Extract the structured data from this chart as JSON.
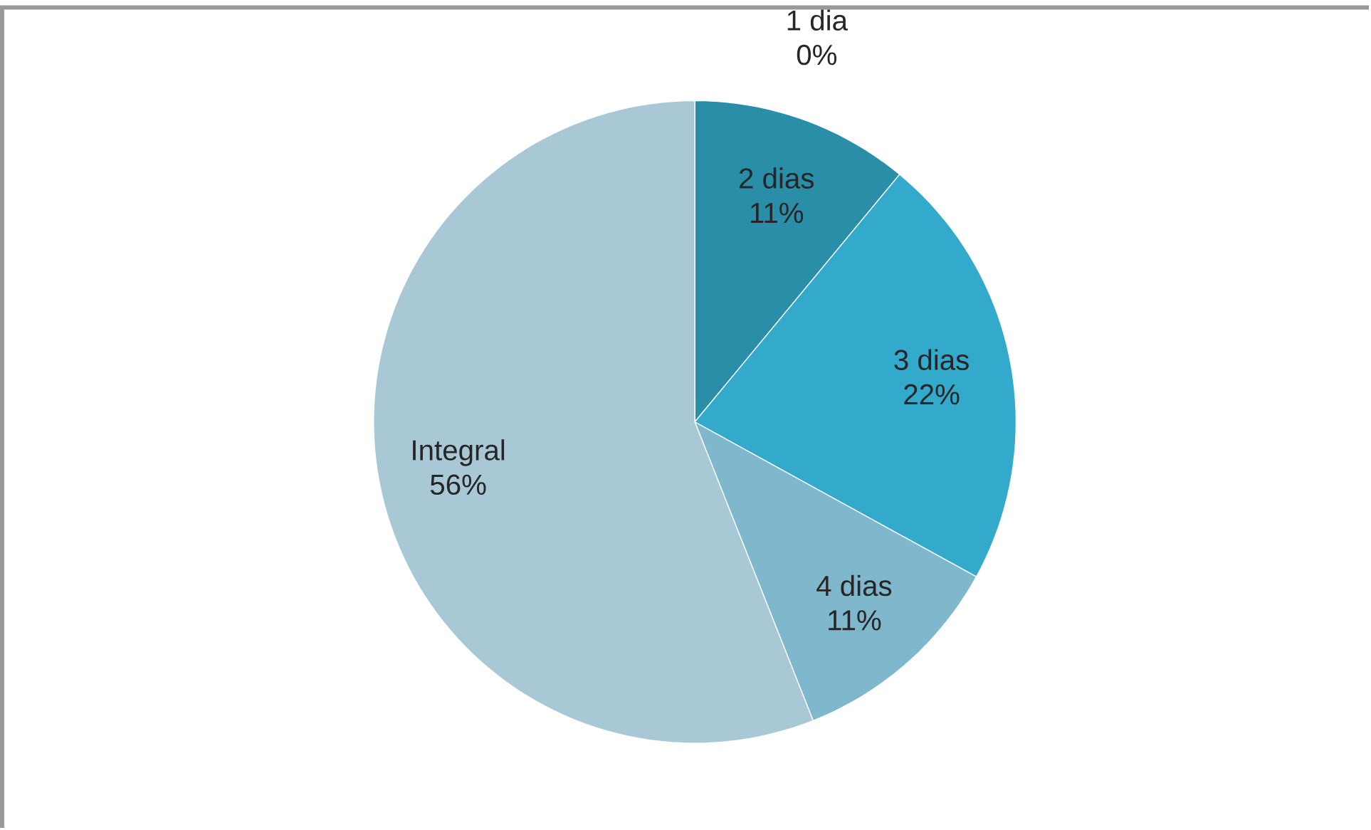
{
  "chart_data": {
    "type": "pie",
    "categories": [
      "1 dia",
      "2 dias",
      "3 dias",
      "4 dias",
      "Integral"
    ],
    "values": [
      0,
      11,
      22,
      11,
      56
    ],
    "value_labels": [
      "0%",
      "11%",
      "22%",
      "11%",
      "56%"
    ],
    "colors": [
      "#1f6f88",
      "#2a8ea8",
      "#33aacc",
      "#7fb8cc",
      "#a8c8d6"
    ]
  }
}
